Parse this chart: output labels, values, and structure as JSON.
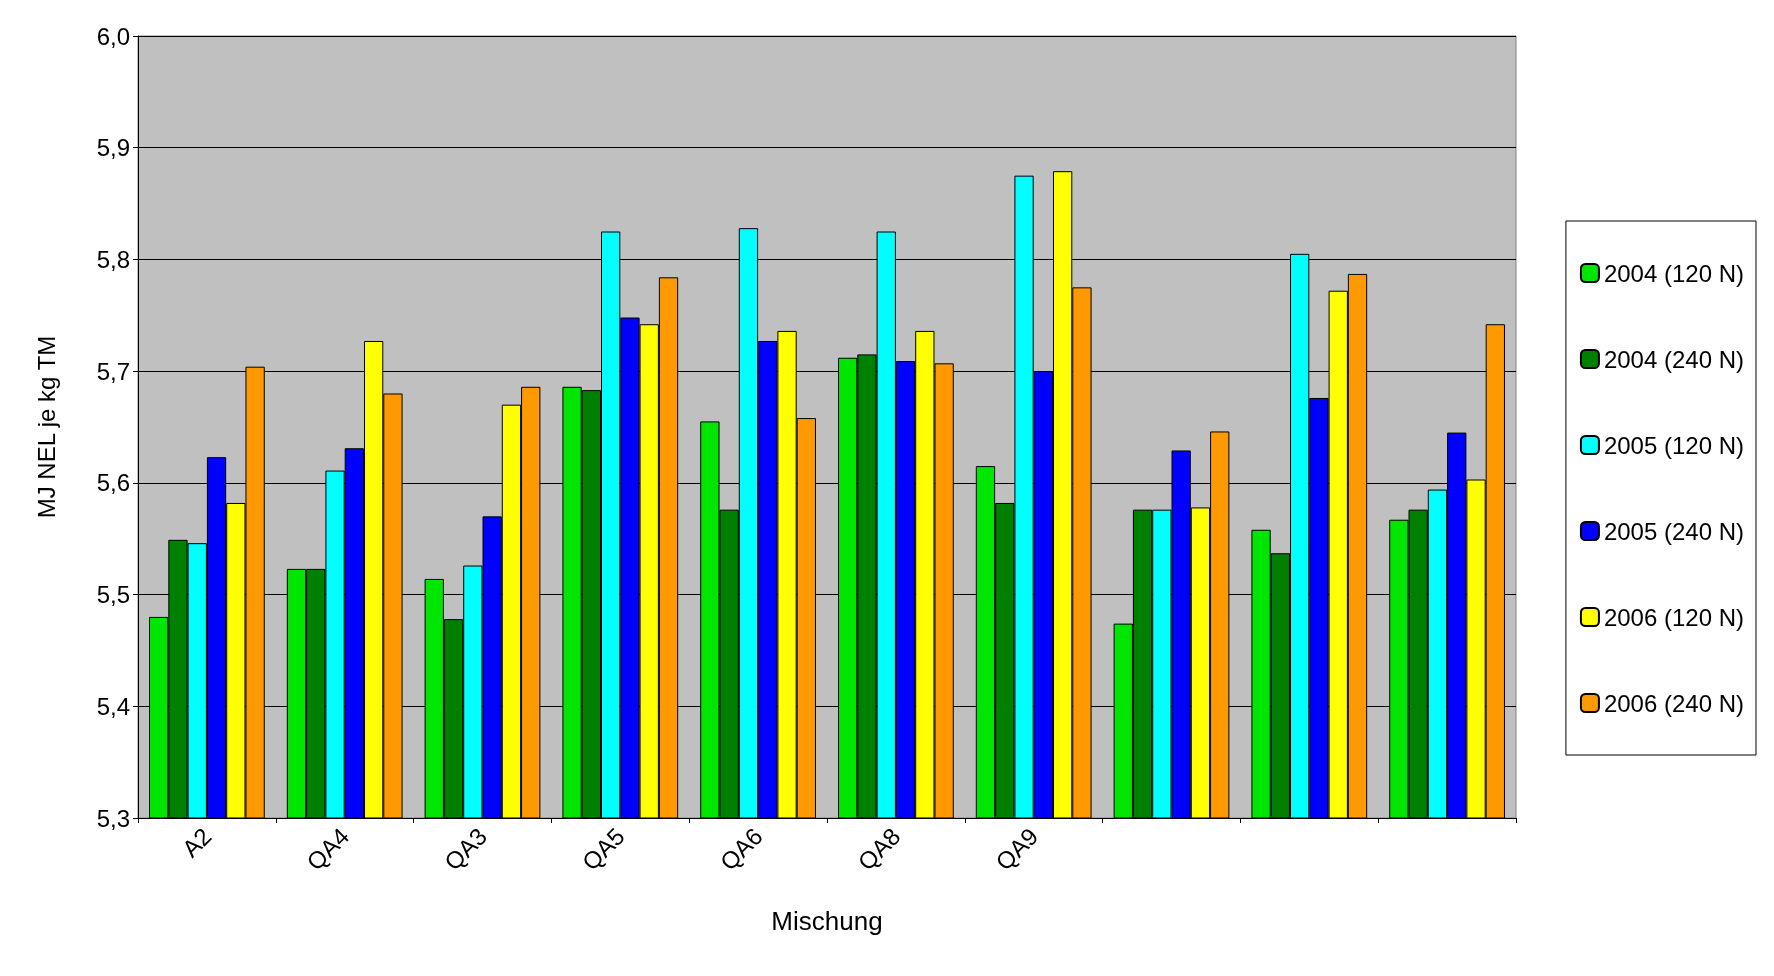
{
  "chart_data": {
    "type": "bar",
    "xlabel": "Mischung",
    "ylabel": "MJ NEL je kg TM",
    "categories": [
      "A2",
      "QA4",
      "QA3",
      "QA5",
      "QA6",
      "QA8",
      "QA9",
      null,
      null,
      null
    ],
    "ylim": [
      5.3,
      6.0
    ],
    "yticks": [
      {
        "value": 5.3,
        "label": "5,3"
      },
      {
        "value": 5.4,
        "label": "5,4"
      },
      {
        "value": 5.5,
        "label": "5,5"
      },
      {
        "value": 5.6,
        "label": "5,6"
      },
      {
        "value": 5.7,
        "label": "5,7"
      },
      {
        "value": 5.8,
        "label": "5,8"
      },
      {
        "value": 5.9,
        "label": "5,9"
      },
      {
        "value": 6.0,
        "label": "6,0"
      }
    ],
    "grid": "y",
    "legend": "right",
    "series": [
      {
        "name": "2004 (120 N)",
        "color": "#00e600",
        "values": [
          5.48,
          5.523,
          5.514,
          5.686,
          5.655,
          5.712,
          5.615,
          5.474,
          5.558,
          5.567
        ]
      },
      {
        "name": "2004 (240 N)",
        "color": "#008000",
        "values": [
          5.549,
          5.523,
          5.478,
          5.683,
          5.576,
          5.715,
          5.582,
          5.576,
          5.537,
          5.576
        ]
      },
      {
        "name": "2005 (120 N)",
        "color": "#00ffff",
        "values": [
          5.546,
          5.611,
          5.526,
          5.825,
          5.828,
          5.825,
          5.875,
          5.576,
          5.805,
          5.594
        ]
      },
      {
        "name": "2005 (240 N)",
        "color": "#0000ff",
        "values": [
          5.623,
          5.631,
          5.57,
          5.748,
          5.727,
          5.709,
          5.7,
          5.629,
          5.676,
          5.645
        ]
      },
      {
        "name": "2006 (120 N)",
        "color": "#ffff00",
        "values": [
          5.582,
          5.727,
          5.67,
          5.742,
          5.736,
          5.736,
          5.879,
          5.578,
          5.772,
          5.603
        ]
      },
      {
        "name": "2006 (240 N)",
        "color": "#ff9900",
        "values": [
          5.704,
          5.68,
          5.686,
          5.784,
          5.658,
          5.707,
          5.775,
          5.646,
          5.787,
          5.742
        ]
      }
    ]
  }
}
